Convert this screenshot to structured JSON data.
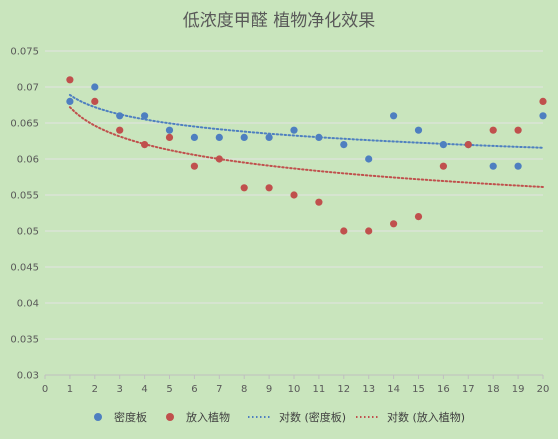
{
  "chart_data": {
    "type": "scatter",
    "title": "低浓度甲醛 植物净化效果",
    "x": [
      1,
      2,
      3,
      4,
      5,
      6,
      7,
      8,
      9,
      10,
      11,
      12,
      13,
      14,
      15,
      16,
      17,
      18,
      19,
      20
    ],
    "xlim": [
      0,
      20
    ],
    "ylim": [
      0.03,
      0.075
    ],
    "x_ticks": [
      "0",
      "1",
      "2",
      "3",
      "4",
      "5",
      "6",
      "7",
      "8",
      "9",
      "10",
      "11",
      "12",
      "13",
      "14",
      "15",
      "16",
      "17",
      "18",
      "19",
      "20"
    ],
    "y_ticks": [
      "0.03",
      "0.035",
      "0.04",
      "0.045",
      "0.05",
      "0.055",
      "0.06",
      "0.065",
      "0.07",
      "0.075"
    ],
    "grid": "horizontal",
    "legend_position": "bottom",
    "series": [
      {
        "name": "密度板",
        "color": "#4e7fc0",
        "values": [
          0.068,
          0.07,
          0.066,
          0.066,
          0.064,
          0.063,
          0.063,
          0.063,
          0.063,
          0.064,
          0.063,
          0.062,
          0.06,
          0.066,
          0.064,
          0.062,
          0.062,
          0.059,
          0.059,
          0.066
        ]
      },
      {
        "name": "放入植物",
        "color": "#c0504d",
        "values": [
          0.071,
          0.068,
          0.064,
          0.062,
          0.063,
          0.059,
          0.06,
          0.056,
          0.056,
          0.055,
          0.054,
          0.05,
          0.05,
          0.051,
          0.052,
          0.059,
          0.062,
          0.064,
          0.064,
          0.068
        ]
      }
    ],
    "trendlines": [
      {
        "name": "对数 (密度板)",
        "type": "logarithmic",
        "color": "#4e7fc0",
        "a": 0.0689,
        "b": -0.00245
      },
      {
        "name": "对数 (放入植物)",
        "type": "logarithmic",
        "color": "#c0504d",
        "a": 0.0672,
        "b": -0.0037
      }
    ]
  }
}
